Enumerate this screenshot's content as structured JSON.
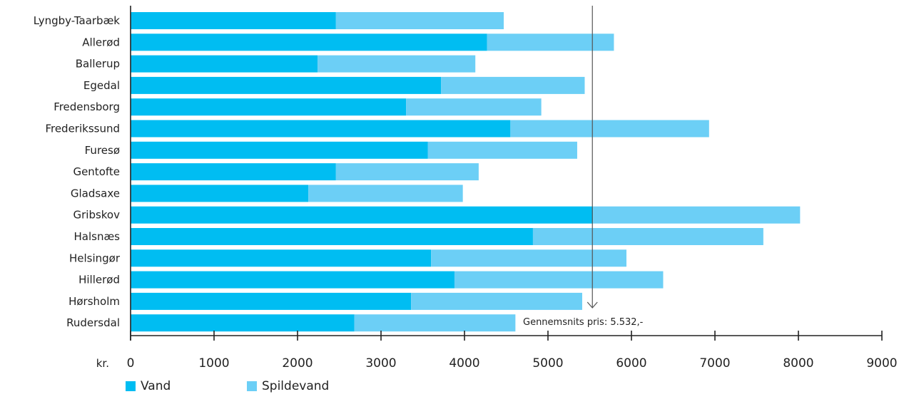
{
  "chart_data": {
    "type": "bar",
    "orientation": "horizontal",
    "stacked": true,
    "categories": [
      "Lyngby-Taarbæk",
      "Allerød",
      "Ballerup",
      "Egedal",
      "Fredensborg",
      "Frederikssund",
      "Furesø",
      "Gentofte",
      "Gladsaxe",
      "Gribskov",
      "Halsnæs",
      "Helsingør",
      "Hillerød",
      "Hørsholm",
      "Rudersdal"
    ],
    "series": [
      {
        "name": "Vand",
        "color": "#00bdf2",
        "values": [
          2460,
          4270,
          2240,
          3720,
          3300,
          4550,
          3560,
          2460,
          2130,
          5540,
          4820,
          3600,
          3880,
          3360,
          2680
        ]
      },
      {
        "name": "Spildevand",
        "color": "#6ccff6",
        "values": [
          2010,
          1520,
          1890,
          1720,
          1620,
          2380,
          1790,
          1710,
          1850,
          2480,
          2760,
          2340,
          2500,
          2050,
          1930
        ]
      }
    ],
    "xlim": [
      0,
      9000
    ],
    "x_ticks": [
      "0",
      "1000",
      "2000",
      "3000",
      "4000",
      "5000",
      "6000",
      "7000",
      "8000",
      "9000"
    ],
    "x_unit_label": "kr.",
    "reference_line": {
      "value": 5532,
      "label": "Gennemsnits pris: 5.532,-"
    },
    "legend_position": "bottom-left",
    "grid": false,
    "axis_color": "#222222"
  }
}
